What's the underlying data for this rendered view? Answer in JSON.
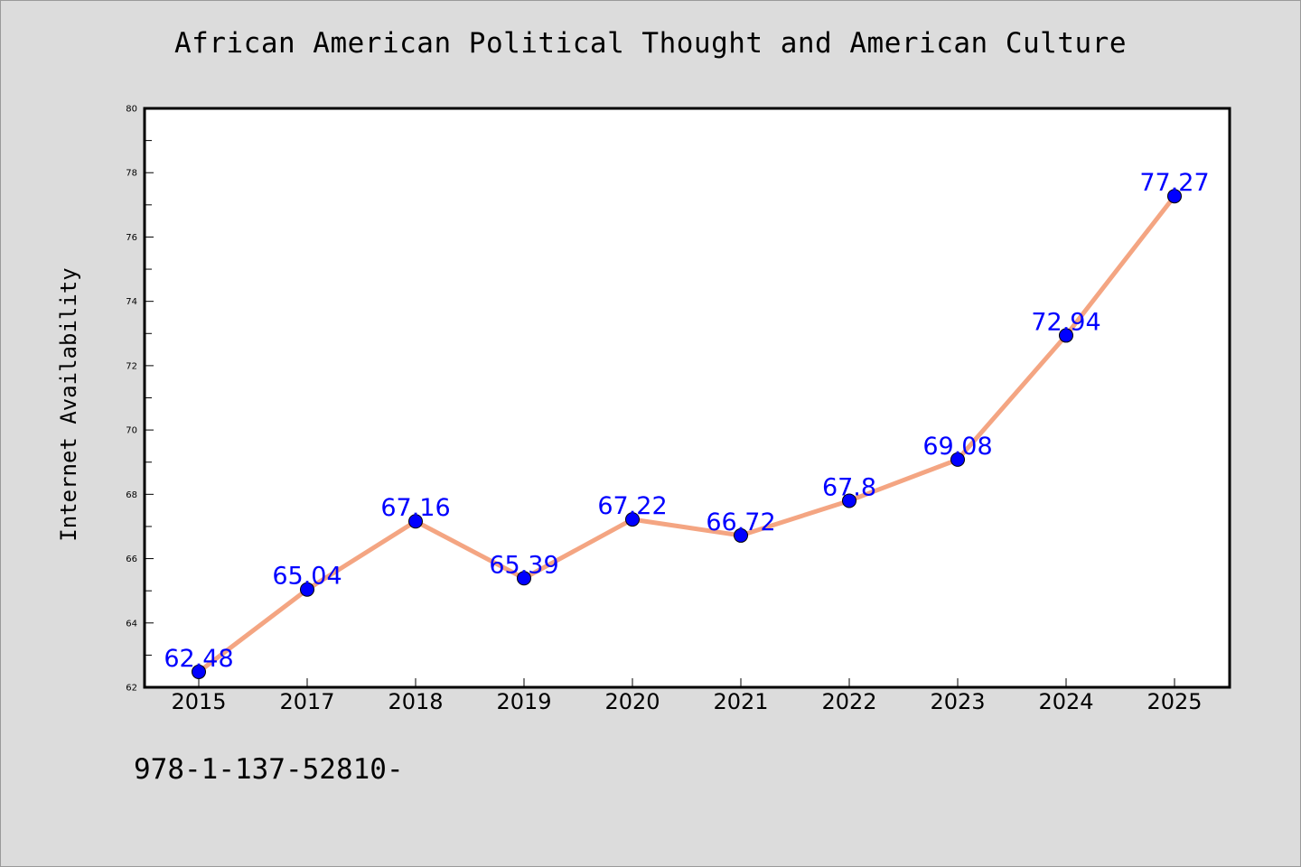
{
  "chart_data": {
    "type": "line",
    "title": "African American Political Thought and American Culture",
    "xlabel": "",
    "ylabel": "Internet Availability",
    "categories": [
      "2015",
      "2017",
      "2018",
      "2019",
      "2020",
      "2021",
      "2022",
      "2023",
      "2024",
      "2025"
    ],
    "series": [
      {
        "values": [
          62.48,
          65.04,
          67.16,
          65.39,
          67.22,
          66.72,
          67.8,
          69.08,
          72.94,
          77.27
        ],
        "data_labels": [
          "62.48",
          "65.04",
          "67.16",
          "65.39",
          "67.22",
          "66.72",
          "67.8",
          "69.08",
          "72.94",
          "77.27"
        ]
      }
    ],
    "ylim": [
      62,
      80
    ],
    "yticks": [
      62,
      64,
      66,
      68,
      70,
      72,
      74,
      76,
      78,
      80
    ],
    "ytick_labels": [
      "62",
      "64",
      "66",
      "68",
      "70",
      "72",
      "74",
      "76",
      "78",
      "80"
    ],
    "grid": false,
    "legend": "none",
    "colors": {
      "line": "#f4a582",
      "marker": "#0000ff",
      "data_label": "#0000ff",
      "background": "#dcdcdc",
      "plot_area": "#ffffff"
    }
  },
  "footer": {
    "text": "978-1-137-52810-"
  }
}
